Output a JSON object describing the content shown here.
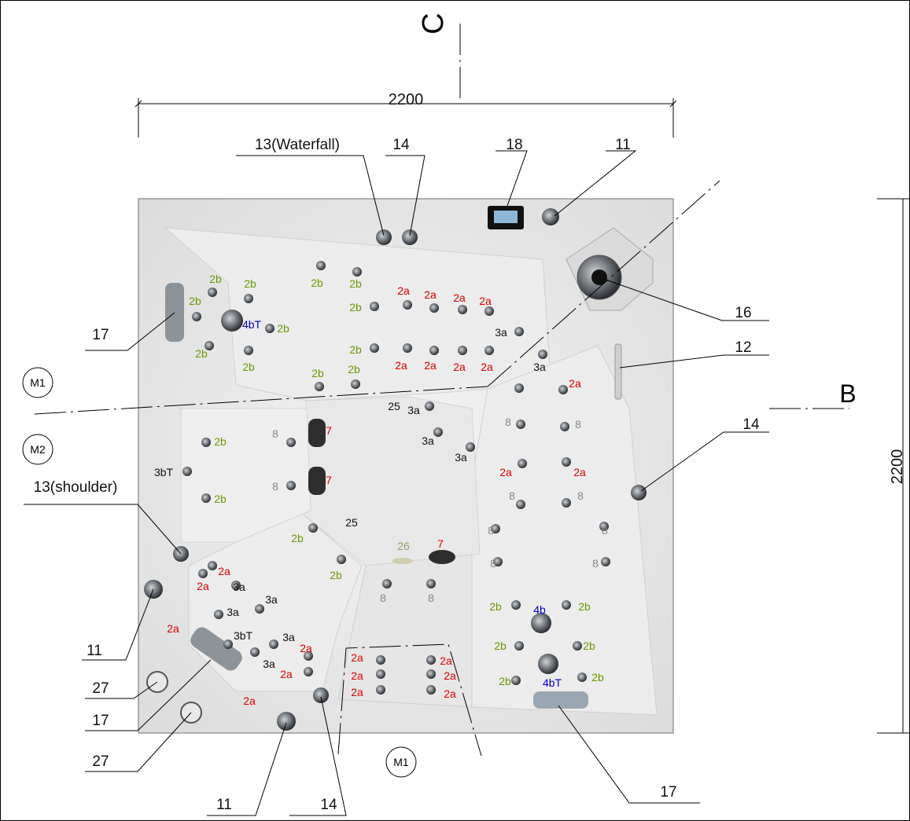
{
  "dimensions": {
    "top": "2200",
    "right": "2200"
  },
  "section_markers": {
    "top": "C",
    "right": "B"
  },
  "circled_markers": {
    "m1_left": "M1",
    "m2_left": "M2",
    "m1_bottom": "M1"
  },
  "callouts": {
    "waterfall": "13(Waterfall)",
    "c14_top": "14",
    "c18": "18",
    "c11_top": "11",
    "c16": "16",
    "c12": "12",
    "c14_right": "14",
    "c17_left": "17",
    "shoulder": "13(shoulder)",
    "c11_left": "11",
    "c27_a": "27",
    "c17_bottom_left": "17",
    "c27_b": "27",
    "c11_bottom": "11",
    "c14_bottom": "14",
    "c17_bottom_right": "17"
  },
  "jet_labels": [
    {
      "text": "2b",
      "color": "#6a9a00"
    },
    {
      "text": "2b",
      "color": "#6a9a00"
    },
    {
      "text": "2b",
      "color": "#6a9a00"
    },
    {
      "text": "4bT",
      "color": "#0000cc"
    },
    {
      "text": "2b",
      "color": "#6a9a00"
    },
    {
      "text": "2b",
      "color": "#6a9a00"
    },
    {
      "text": "2b",
      "color": "#6a9a00"
    },
    {
      "text": "2b",
      "color": "#6a9a00"
    },
    {
      "text": "2b",
      "color": "#6a9a00"
    },
    {
      "text": "2b",
      "color": "#6a9a00"
    },
    {
      "text": "2b",
      "color": "#6a9a00"
    },
    {
      "text": "2b",
      "color": "#6a9a00"
    },
    {
      "text": "2b",
      "color": "#6a9a00"
    },
    {
      "text": "2a",
      "color": "#dd0000"
    },
    {
      "text": "2a",
      "color": "#dd0000"
    },
    {
      "text": "2a",
      "color": "#dd0000"
    },
    {
      "text": "2a",
      "color": "#dd0000"
    },
    {
      "text": "2a",
      "color": "#dd0000"
    },
    {
      "text": "2a",
      "color": "#dd0000"
    },
    {
      "text": "2a",
      "color": "#dd0000"
    },
    {
      "text": "2a",
      "color": "#dd0000"
    },
    {
      "text": "3a",
      "color": "#111111"
    },
    {
      "text": "3a",
      "color": "#111111"
    },
    {
      "text": "2a",
      "color": "#dd0000"
    },
    {
      "text": "25",
      "color": "#111111"
    },
    {
      "text": "3a",
      "color": "#111111"
    },
    {
      "text": "3a",
      "color": "#111111"
    },
    {
      "text": "3a",
      "color": "#111111"
    },
    {
      "text": "8",
      "color": "#888888"
    },
    {
      "text": "8",
      "color": "#888888"
    },
    {
      "text": "2a",
      "color": "#dd0000"
    },
    {
      "text": "2a",
      "color": "#dd0000"
    },
    {
      "text": "2b",
      "color": "#6a9a00"
    },
    {
      "text": "8",
      "color": "#888888"
    },
    {
      "text": "7",
      "color": "#dd0000"
    },
    {
      "text": "3bT",
      "color": "#111111"
    },
    {
      "text": "8",
      "color": "#888888"
    },
    {
      "text": "7",
      "color": "#dd0000"
    },
    {
      "text": "2b",
      "color": "#6a9a00"
    },
    {
      "text": "8",
      "color": "#888888"
    },
    {
      "text": "8",
      "color": "#888888"
    },
    {
      "text": "25",
      "color": "#111111"
    },
    {
      "text": "2b",
      "color": "#6a9a00"
    },
    {
      "text": "26",
      "color": "#999966"
    },
    {
      "text": "7",
      "color": "#dd0000"
    },
    {
      "text": "8",
      "color": "#888888"
    },
    {
      "text": "8",
      "color": "#888888"
    },
    {
      "text": "8",
      "color": "#888888"
    },
    {
      "text": "8",
      "color": "#888888"
    },
    {
      "text": "2b",
      "color": "#6a9a00"
    },
    {
      "text": "2a",
      "color": "#dd0000"
    },
    {
      "text": "2a",
      "color": "#dd0000"
    },
    {
      "text": "3a",
      "color": "#111111"
    },
    {
      "text": "3a",
      "color": "#111111"
    },
    {
      "text": "3a",
      "color": "#111111"
    },
    {
      "text": "8",
      "color": "#888888"
    },
    {
      "text": "8",
      "color": "#888888"
    },
    {
      "text": "2b",
      "color": "#6a9a00"
    },
    {
      "text": "4b",
      "color": "#0000cc"
    },
    {
      "text": "2b",
      "color": "#6a9a00"
    },
    {
      "text": "2a",
      "color": "#dd0000"
    },
    {
      "text": "3bT",
      "color": "#111111"
    },
    {
      "text": "3a",
      "color": "#111111"
    },
    {
      "text": "2a",
      "color": "#dd0000"
    },
    {
      "text": "3a",
      "color": "#111111"
    },
    {
      "text": "2a",
      "color": "#dd0000"
    },
    {
      "text": "2b",
      "color": "#6a9a00"
    },
    {
      "text": "2b",
      "color": "#6a9a00"
    },
    {
      "text": "2a",
      "color": "#dd0000"
    },
    {
      "text": "2a",
      "color": "#dd0000"
    },
    {
      "text": "2a",
      "color": "#dd0000"
    },
    {
      "text": "2a",
      "color": "#dd0000"
    },
    {
      "text": "2a",
      "color": "#dd0000"
    },
    {
      "text": "2a",
      "color": "#dd0000"
    },
    {
      "text": "2b",
      "color": "#6a9a00"
    },
    {
      "text": "4bT",
      "color": "#0000cc"
    },
    {
      "text": "2b",
      "color": "#6a9a00"
    },
    {
      "text": "2a",
      "color": "#dd0000"
    }
  ]
}
